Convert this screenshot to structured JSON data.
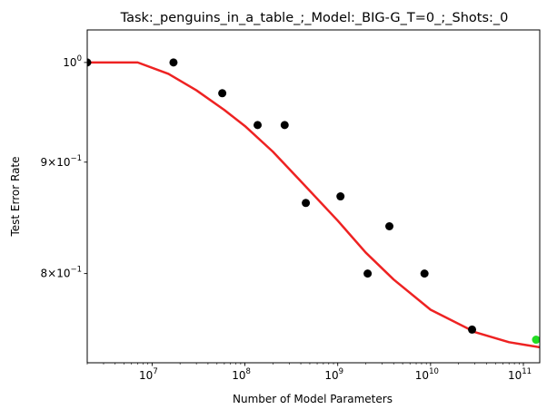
{
  "chart_data": {
    "type": "scatter",
    "title": "Task:_penguins_in_a_table_;_Model:_BIG-G_T=0_;_Shots:_0",
    "xlabel": "Number of Model Parameters",
    "ylabel": "Test Error Rate",
    "x_scale": "log",
    "y_scale": "log",
    "xlim": [
      2000000,
      150000000000
    ],
    "ylim": [
      0.728,
      1.035
    ],
    "grid": false,
    "x_ticks": [
      {
        "base": "10",
        "exp": "7",
        "value": 10000000
      },
      {
        "base": "10",
        "exp": "8",
        "value": 100000000
      },
      {
        "base": "10",
        "exp": "9",
        "value": 1000000000
      },
      {
        "base": "10",
        "exp": "10",
        "value": 10000000000
      },
      {
        "base": "10",
        "exp": "11",
        "value": 100000000000
      }
    ],
    "y_ticks": [
      {
        "base": "10",
        "exp": "0",
        "prefix": "",
        "value": 1.0
      },
      {
        "base": "10",
        "exp": "−1",
        "prefix": "9×",
        "value": 0.9
      },
      {
        "base": "10",
        "exp": "−1",
        "prefix": "8×",
        "value": 0.8
      }
    ],
    "series": [
      {
        "kind": "points",
        "color": "#000000",
        "points": [
          {
            "x": 2000000,
            "y": 1.0
          },
          {
            "x": 17000000,
            "y": 1.0
          },
          {
            "x": 57000000,
            "y": 0.968
          },
          {
            "x": 137000000,
            "y": 0.936
          },
          {
            "x": 268000000,
            "y": 0.936
          },
          {
            "x": 453000000,
            "y": 0.862
          },
          {
            "x": 1070000000,
            "y": 0.868
          },
          {
            "x": 2100000000,
            "y": 0.8
          },
          {
            "x": 3600000000,
            "y": 0.841
          },
          {
            "x": 8600000000,
            "y": 0.8
          },
          {
            "x": 28000000000,
            "y": 0.754
          }
        ]
      },
      {
        "kind": "points",
        "color": "#22dd22",
        "points": [
          {
            "x": 137000000000,
            "y": 0.746
          }
        ]
      },
      {
        "kind": "fit-curve",
        "color": "#ee2222",
        "points": [
          {
            "x": 2000000,
            "y": 1.0
          },
          {
            "x": 7000000,
            "y": 1.0
          },
          {
            "x": 15000000,
            "y": 0.988
          },
          {
            "x": 30000000,
            "y": 0.971
          },
          {
            "x": 60000000,
            "y": 0.951
          },
          {
            "x": 100000000,
            "y": 0.935
          },
          {
            "x": 200000000,
            "y": 0.91
          },
          {
            "x": 400000000,
            "y": 0.882
          },
          {
            "x": 1000000000,
            "y": 0.846
          },
          {
            "x": 2000000000,
            "y": 0.818
          },
          {
            "x": 4000000000,
            "y": 0.795
          },
          {
            "x": 10000000000,
            "y": 0.77
          },
          {
            "x": 30000000000,
            "y": 0.752
          },
          {
            "x": 70000000000,
            "y": 0.744
          },
          {
            "x": 150000000000,
            "y": 0.74
          }
        ]
      }
    ]
  }
}
